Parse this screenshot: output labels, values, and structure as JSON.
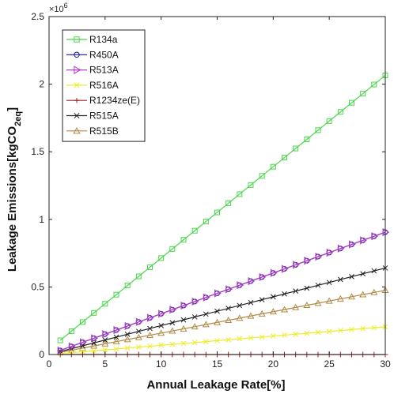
{
  "chart_data": {
    "type": "line",
    "xlabel": "Annual Leakage Rate[%]",
    "ylabel_main": "Leakage Emissions[kgCO",
    "ylabel_sub": "2eq",
    "ylabel_end": "]",
    "y_exponent_label": "×10",
    "y_exponent_power": "6",
    "xlim": [
      0,
      30
    ],
    "ylim": [
      0,
      2.5
    ],
    "x_ticks": [
      0,
      5,
      10,
      15,
      20,
      25,
      30
    ],
    "x_tick_labels": [
      "0",
      "5",
      "10",
      "15",
      "20",
      "25",
      "30"
    ],
    "y_ticks": [
      0,
      0.5,
      1,
      1.5,
      2,
      2.5
    ],
    "y_tick_labels": [
      "0",
      "0.5",
      "1",
      "1.5",
      "2",
      "2.5"
    ],
    "legend_position": "top-left",
    "x": [
      1,
      30
    ],
    "series": [
      {
        "name": "R134a",
        "values": [
          0.105,
          2.065
        ],
        "color": "#49d849",
        "marker": "square"
      },
      {
        "name": "R450A",
        "values": [
          0.03,
          0.905
        ],
        "color": "#1a1a8c",
        "marker": "circle"
      },
      {
        "name": "R513A",
        "values": [
          0.03,
          0.905
        ],
        "color": "#b33cc8",
        "marker": "triangle-right"
      },
      {
        "name": "R516A",
        "values": [
          0.007,
          0.205
        ],
        "color": "#ecec2a",
        "marker": "x"
      },
      {
        "name": "R1234ze(E)",
        "values": [
          0.0,
          0.0
        ],
        "color": "#a02020",
        "marker": "plus"
      },
      {
        "name": "R515A",
        "values": [
          0.022,
          0.64
        ],
        "color": "#222222",
        "marker": "x"
      },
      {
        "name": "R515B",
        "values": [
          0.016,
          0.475
        ],
        "color": "#b08a45",
        "marker": "triangle-up"
      }
    ]
  }
}
